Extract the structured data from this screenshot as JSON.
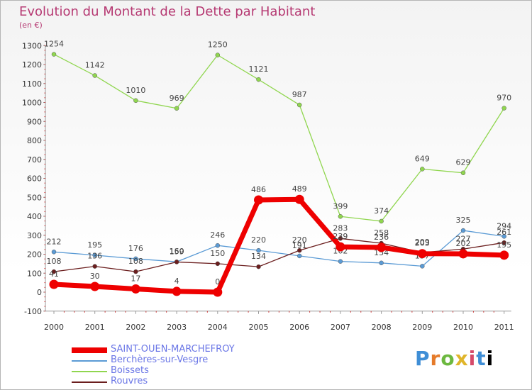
{
  "title": "Evolution du Montant de la Dette par Habitant",
  "subtitle": "(en €)",
  "logo_text": "Proxiti",
  "chart_data": {
    "type": "line",
    "x": [
      "2000",
      "2001",
      "2002",
      "2003",
      "2004",
      "2005",
      "2006",
      "2007",
      "2008",
      "2009",
      "2010",
      "2011"
    ],
    "ylim": [
      -100,
      1300
    ],
    "yticks": [
      -100,
      0,
      100,
      200,
      300,
      400,
      500,
      600,
      700,
      800,
      900,
      1000,
      1100,
      1200,
      1300
    ],
    "grid": false,
    "legend_position": "bottom-left",
    "series": [
      {
        "name": "Berchères-sur-Vesgre",
        "color": "#5b9bd5",
        "width": 1.3,
        "values": [
          212,
          195,
          176,
          160,
          246,
          220,
          191,
          162,
          154,
          137,
          325,
          294
        ],
        "labels": [
          "212",
          "195",
          "176",
          "160",
          "246",
          "220",
          "191",
          "162",
          "154",
          "137",
          "325",
          "294"
        ]
      },
      {
        "name": "Boissets",
        "color": "#90d64f",
        "width": 1.3,
        "values": [
          1254,
          1142,
          1010,
          969,
          1250,
          1121,
          987,
          399,
          374,
          649,
          629,
          970
        ],
        "labels": [
          "1254",
          "1142",
          "1010",
          "969",
          "1250",
          "1121",
          "987",
          "399",
          "374",
          "649",
          "629",
          "970"
        ]
      },
      {
        "name": "Rouvres",
        "color": "#6b1e1e",
        "width": 1.3,
        "values": [
          108,
          136,
          108,
          159,
          150,
          134,
          220,
          283,
          258,
          209,
          227,
          261
        ],
        "labels": [
          "108",
          "136",
          "108",
          "159",
          "150",
          "134",
          "220",
          "283",
          "258",
          "209",
          "227",
          "261"
        ]
      },
      {
        "name": "SAINT-OUEN-MARCHEFROY",
        "color": "#ee0000",
        "width": 7,
        "values": [
          41,
          30,
          17,
          4,
          0,
          486,
          489,
          239,
          236,
          203,
          202,
          195
        ],
        "labels": [
          "41",
          "30",
          "17",
          "4",
          "0",
          "486",
          "489",
          "239",
          "236",
          "203",
          "202",
          "195"
        ]
      }
    ],
    "legend_order": [
      "SAINT-OUEN-MARCHEFROY",
      "Berchères-sur-Vesgre",
      "Boissets",
      "Rouvres"
    ]
  }
}
